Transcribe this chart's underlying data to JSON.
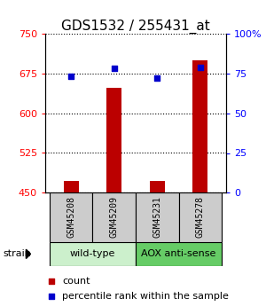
{
  "title": "GDS1532 / 255431_at",
  "samples": [
    "GSM45208",
    "GSM45209",
    "GSM45231",
    "GSM45278"
  ],
  "count_values": [
    472,
    648,
    472,
    700
  ],
  "percentile_values": [
    73,
    78,
    72,
    79
  ],
  "ylim_left": [
    450,
    750
  ],
  "ylim_right": [
    0,
    100
  ],
  "yticks_left": [
    450,
    525,
    600,
    675,
    750
  ],
  "yticks_right": [
    0,
    25,
    50,
    75,
    100
  ],
  "ytick_labels_right": [
    "0",
    "25",
    "50",
    "75",
    "100%"
  ],
  "bar_color": "#bb0000",
  "dot_color": "#0000cc",
  "bar_bottom": 450,
  "groups": [
    {
      "label": "wild-type",
      "samples": [
        0,
        1
      ],
      "color": "#ccf0cc"
    },
    {
      "label": "AOX anti-sense",
      "samples": [
        2,
        3
      ],
      "color": "#66cc66"
    }
  ],
  "strain_label": "strain",
  "legend_count_label": "count",
  "legend_pct_label": "percentile rank within the sample",
  "sample_box_color": "#cccccc",
  "title_fontsize": 11,
  "tick_fontsize": 8,
  "bar_width": 0.35
}
